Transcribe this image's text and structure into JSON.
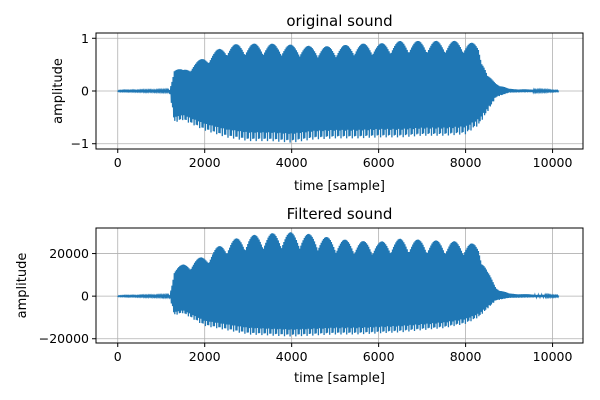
{
  "colors": {
    "series": "#1f77b4",
    "grid": "#b0b0b0",
    "axes": "#000000"
  },
  "chart_data": [
    {
      "type": "line",
      "title": "original sound",
      "xlabel": "time [sample]",
      "ylabel": "amplitude",
      "xlim": [
        -500,
        10700
      ],
      "ylim": [
        -1.1,
        1.1
      ],
      "grid": true,
      "x_ticks": [
        0,
        2000,
        4000,
        6000,
        8000,
        10000
      ],
      "x_tick_labels": [
        "0",
        "2000",
        "4000",
        "6000",
        "8000",
        "10000"
      ],
      "y_ticks": [
        -1,
        0,
        1
      ],
      "y_tick_labels": [
        "−1",
        "0",
        "1"
      ],
      "series": [
        {
          "x": [
            0,
            1200,
            1300,
            1500,
            2000,
            2500,
            3000,
            3500,
            4000,
            4500,
            5000,
            5500,
            6000,
            6500,
            7000,
            7500,
            8000,
            8300,
            8500,
            8700,
            9000,
            10150
          ],
          "y_max": [
            0.01,
            0.02,
            0.45,
            0.4,
            0.65,
            0.88,
            0.9,
            0.9,
            0.88,
            0.85,
            0.85,
            0.9,
            0.9,
            0.95,
            0.95,
            0.95,
            0.95,
            0.88,
            0.3,
            0.15,
            0.04,
            0.01
          ],
          "y_min": [
            -0.01,
            -0.02,
            -0.6,
            -0.55,
            -0.75,
            -0.88,
            -0.95,
            -0.95,
            -0.98,
            -0.92,
            -0.9,
            -0.9,
            -0.88,
            -0.88,
            -0.85,
            -0.85,
            -0.82,
            -0.65,
            -0.4,
            -0.12,
            -0.03,
            -0.01
          ]
        }
      ]
    },
    {
      "type": "line",
      "title": "Filtered sound",
      "xlabel": "time [sample]",
      "ylabel": "amplitude",
      "xlim": [
        -500,
        10700
      ],
      "ylim": [
        -22000,
        32000
      ],
      "grid": true,
      "x_ticks": [
        0,
        2000,
        4000,
        6000,
        8000,
        10000
      ],
      "x_tick_labels": [
        "0",
        "2000",
        "4000",
        "6000",
        "8000",
        "10000"
      ],
      "y_ticks": [
        -20000,
        0,
        20000
      ],
      "y_tick_labels": [
        "−20000",
        "0",
        "20000"
      ],
      "series": [
        {
          "x": [
            0,
            1200,
            1300,
            1500,
            2000,
            2500,
            3000,
            3500,
            4000,
            4500,
            5000,
            5500,
            6000,
            6500,
            7000,
            7500,
            8000,
            8300,
            8500,
            8700,
            9000,
            10150
          ],
          "y_max": [
            200,
            500,
            13000,
            15000,
            19000,
            26000,
            28500,
            29500,
            30000,
            29000,
            27000,
            26000,
            25500,
            27000,
            26500,
            26000,
            25500,
            24000,
            12000,
            4000,
            1200,
            300
          ],
          "y_min": [
            -200,
            -500,
            -9000,
            -8000,
            -14000,
            -16000,
            -18000,
            -18500,
            -19000,
            -18500,
            -18000,
            -18000,
            -17500,
            -17000,
            -16000,
            -15000,
            -13000,
            -10000,
            -6000,
            -2000,
            -800,
            -300
          ]
        }
      ]
    }
  ]
}
